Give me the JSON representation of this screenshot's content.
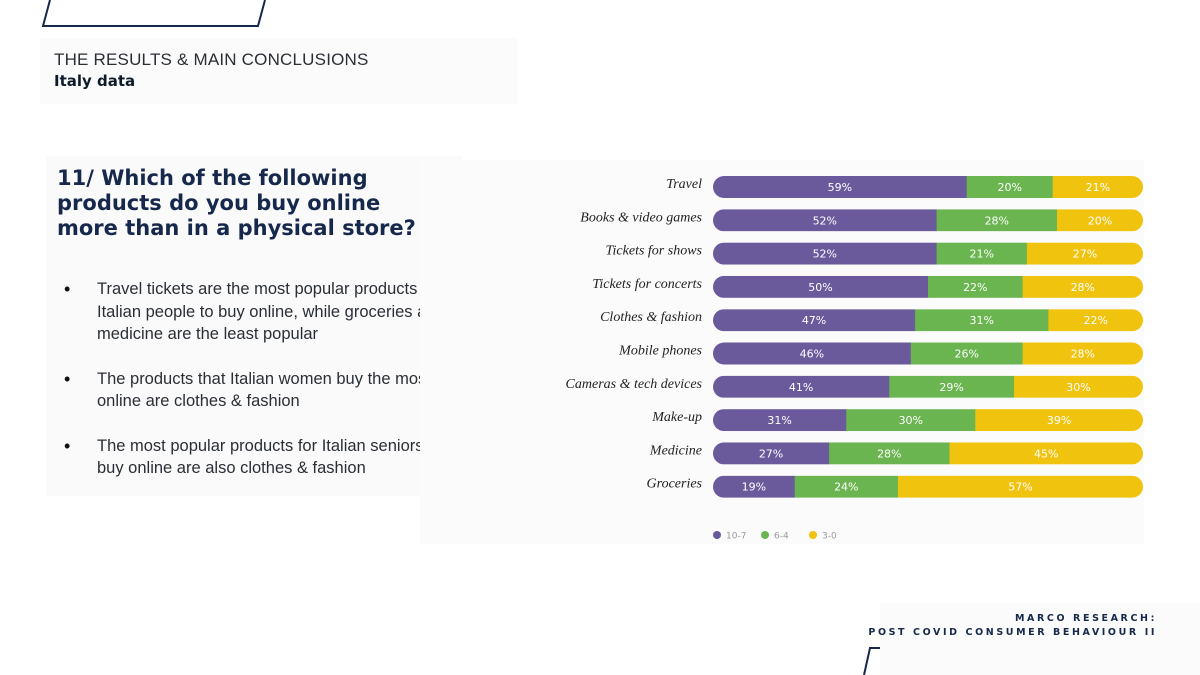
{
  "header": {
    "section_label": "THE RESULTS & MAIN CONCLUSIONS",
    "subtitle": "Italy data"
  },
  "left": {
    "question": "11/ Which of the following products do you buy online more than in a physical store?",
    "bullets": [
      "Travel tickets are the most popular products for Italian people to buy online, while groceries and medicine are the least popular",
      "The products that Italian women buy the most online are clothes & fashion",
      "The most popular products for Italian seniors to buy online are also clothes & fashion"
    ]
  },
  "footer": {
    "brand_line1": "MARCO RESEARCH:",
    "brand_line2": "POST COVID CONSUMER BEHAVIOUR II"
  },
  "colors": {
    "series_10_7": "#6a5a9b",
    "series_6_4": "#6ab54f",
    "series_3_0": "#f0c30f",
    "navy": "#16284b"
  },
  "chart_data": {
    "type": "bar",
    "orientation": "horizontal",
    "stacked": true,
    "unit": "%",
    "categories": [
      "Travel",
      "Books & video games",
      "Tickets for shows",
      "Tickets for concerts",
      "Clothes & fashion",
      "Mobile phones",
      "Cameras & tech devices",
      "Make-up",
      "Medicine",
      "Groceries"
    ],
    "series": [
      {
        "name": "10-7",
        "color": "#6a5a9b",
        "values": [
          59,
          52,
          52,
          50,
          47,
          46,
          41,
          31,
          27,
          19
        ]
      },
      {
        "name": "6-4",
        "color": "#6ab54f",
        "values": [
          20,
          28,
          21,
          22,
          31,
          26,
          29,
          30,
          28,
          24
        ]
      },
      {
        "name": "3-0",
        "color": "#f0c30f",
        "values": [
          21,
          20,
          27,
          28,
          22,
          28,
          30,
          39,
          45,
          57
        ]
      }
    ],
    "xlim": [
      0,
      100
    ],
    "legend": "bottom-left"
  }
}
